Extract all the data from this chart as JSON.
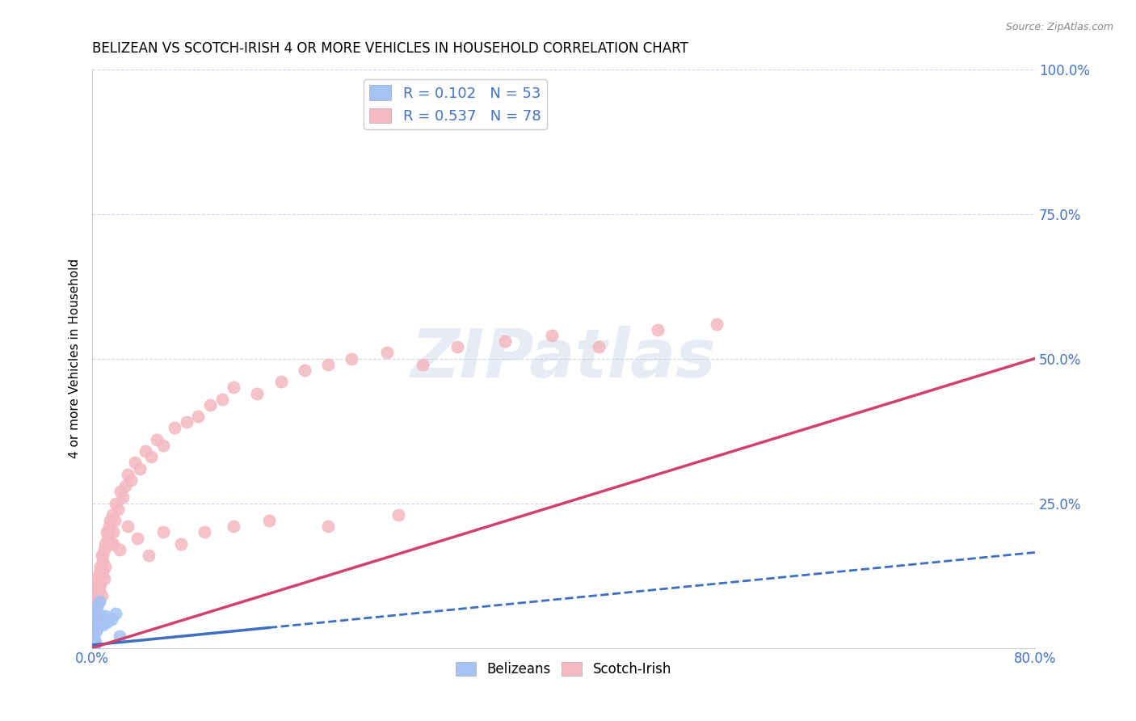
{
  "title": "BELIZEAN VS SCOTCH-IRISH 4 OR MORE VEHICLES IN HOUSEHOLD CORRELATION CHART",
  "source": "Source: ZipAtlas.com",
  "ylabel": "4 or more Vehicles in Household",
  "xlim": [
    0.0,
    0.8
  ],
  "ylim": [
    0.0,
    1.0
  ],
  "xtick_vals": [
    0.0,
    0.1,
    0.2,
    0.3,
    0.4,
    0.5,
    0.6,
    0.7,
    0.8
  ],
  "xticklabels": [
    "0.0%",
    "",
    "",
    "",
    "",
    "",
    "",
    "",
    "80.0%"
  ],
  "ytick_vals": [
    0.0,
    0.25,
    0.5,
    0.75,
    1.0
  ],
  "yticklabels": [
    "",
    "25.0%",
    "50.0%",
    "75.0%",
    "100.0%"
  ],
  "belizean_color": "#a4c2f4",
  "scotchirish_color": "#f4b8c1",
  "belizean_line_color": "#3d6ebf",
  "scotchirish_line_color": "#d04070",
  "R_belizean": 0.102,
  "N_belizean": 53,
  "R_scotchirish": 0.537,
  "N_scotchirish": 78,
  "watermark": "ZIPatlas",
  "title_fontsize": 12,
  "tick_color": "#4472c4",
  "grid_color": "#c8d8e8",
  "background_color": "#ffffff",
  "belizean_x": [
    0.001,
    0.001,
    0.002,
    0.001,
    0.001,
    0.002,
    0.001,
    0.001,
    0.001,
    0.001,
    0.001,
    0.001,
    0.002,
    0.001,
    0.001,
    0.002,
    0.001,
    0.001,
    0.001,
    0.001,
    0.002,
    0.001,
    0.001,
    0.001,
    0.001,
    0.001,
    0.002,
    0.001,
    0.001,
    0.001,
    0.001,
    0.001,
    0.001,
    0.002,
    0.001,
    0.001,
    0.001,
    0.001,
    0.001,
    0.001,
    0.003,
    0.003,
    0.004,
    0.004,
    0.005,
    0.006,
    0.007,
    0.009,
    0.011,
    0.013,
    0.016,
    0.02,
    0.023
  ],
  "belizean_y": [
    0.005,
    0.01,
    0.008,
    0.012,
    0.003,
    0.007,
    0.015,
    0.02,
    0.004,
    0.009,
    0.006,
    0.011,
    0.014,
    0.003,
    0.008,
    0.012,
    0.005,
    0.01,
    0.007,
    0.013,
    0.009,
    0.006,
    0.011,
    0.004,
    0.008,
    0.016,
    0.01,
    0.003,
    0.007,
    0.012,
    0.005,
    0.009,
    0.004,
    0.006,
    0.011,
    0.008,
    0.003,
    0.007,
    0.01,
    0.005,
    0.03,
    0.06,
    0.05,
    0.07,
    0.04,
    0.08,
    0.055,
    0.04,
    0.055,
    0.045,
    0.05,
    0.06,
    0.02
  ],
  "scotchirish_x": [
    0.001,
    0.002,
    0.002,
    0.003,
    0.003,
    0.004,
    0.004,
    0.005,
    0.005,
    0.006,
    0.006,
    0.007,
    0.007,
    0.008,
    0.008,
    0.009,
    0.009,
    0.01,
    0.01,
    0.011,
    0.012,
    0.013,
    0.014,
    0.015,
    0.016,
    0.017,
    0.018,
    0.019,
    0.02,
    0.022,
    0.024,
    0.026,
    0.028,
    0.03,
    0.033,
    0.036,
    0.04,
    0.045,
    0.05,
    0.055,
    0.06,
    0.07,
    0.08,
    0.09,
    0.1,
    0.11,
    0.12,
    0.14,
    0.16,
    0.18,
    0.2,
    0.22,
    0.25,
    0.28,
    0.31,
    0.35,
    0.39,
    0.43,
    0.48,
    0.53,
    0.003,
    0.005,
    0.007,
    0.009,
    0.011,
    0.014,
    0.018,
    0.023,
    0.03,
    0.038,
    0.048,
    0.06,
    0.075,
    0.095,
    0.12,
    0.15,
    0.2,
    0.26
  ],
  "scotchirish_y": [
    0.05,
    0.08,
    0.06,
    0.1,
    0.07,
    0.12,
    0.09,
    0.11,
    0.08,
    0.13,
    0.1,
    0.14,
    0.11,
    0.16,
    0.09,
    0.15,
    0.13,
    0.17,
    0.12,
    0.18,
    0.2,
    0.19,
    0.21,
    0.22,
    0.18,
    0.23,
    0.2,
    0.22,
    0.25,
    0.24,
    0.27,
    0.26,
    0.28,
    0.3,
    0.29,
    0.32,
    0.31,
    0.34,
    0.33,
    0.36,
    0.35,
    0.38,
    0.39,
    0.4,
    0.42,
    0.43,
    0.45,
    0.44,
    0.46,
    0.48,
    0.49,
    0.5,
    0.51,
    0.49,
    0.52,
    0.53,
    0.54,
    0.52,
    0.55,
    0.56,
    0.06,
    0.09,
    0.13,
    0.16,
    0.14,
    0.2,
    0.18,
    0.17,
    0.21,
    0.19,
    0.16,
    0.2,
    0.18,
    0.2,
    0.21,
    0.22,
    0.21,
    0.23
  ]
}
